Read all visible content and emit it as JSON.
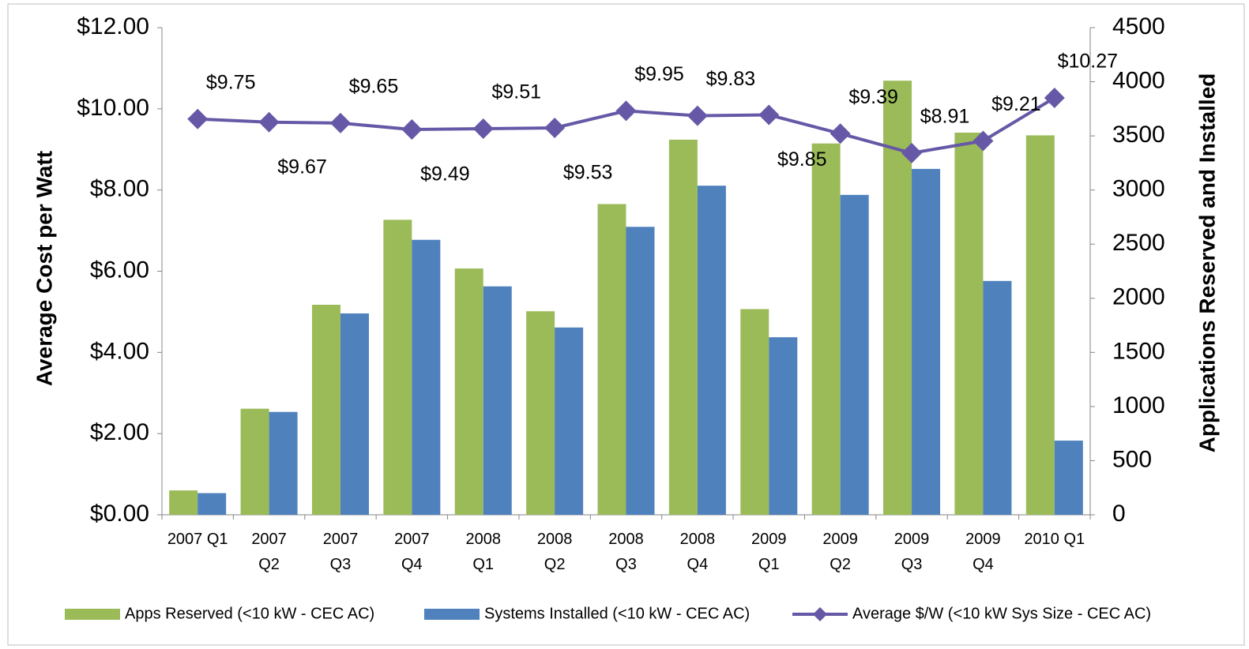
{
  "chart_data": {
    "type": "bar-line",
    "categories": [
      "2007 Q1",
      "2007\nQ2",
      "2007\nQ3",
      "2007\nQ4",
      "2008\nQ1",
      "2008\nQ2",
      "2008\nQ3",
      "2008\nQ4",
      "2009\nQ1",
      "2009\nQ2",
      "2009\nQ3",
      "2009\nQ4",
      "2010 Q1"
    ],
    "ylabel": "Average Cost per Watt",
    "y2label": "Applications Reserved and Installed",
    "ylim": [
      0,
      12
    ],
    "yticks": [
      {
        "value": 0,
        "label": "$0.00"
      },
      {
        "value": 2,
        "label": "$2.00"
      },
      {
        "value": 4,
        "label": "$4.00"
      },
      {
        "value": 6,
        "label": "$6.00"
      },
      {
        "value": 8,
        "label": "$8.00"
      },
      {
        "value": 10,
        "label": "$10.00"
      },
      {
        "value": 12,
        "label": "$12.00"
      }
    ],
    "y2lim": [
      0,
      4500
    ],
    "y2ticks": [
      0,
      500,
      1000,
      1500,
      2000,
      2500,
      3000,
      3500,
      4000,
      4500
    ],
    "legend": "bottom",
    "series": [
      {
        "name": "Apps Reserved (<10 kW - CEC AC)",
        "color": "#9bbb59",
        "type": "bar",
        "axis": "y2",
        "values": [
          225,
          980,
          1940,
          2725,
          2275,
          1880,
          2870,
          3465,
          1900,
          3430,
          4010,
          3530,
          3505
        ]
      },
      {
        "name": "Systems Installed (<10 kW - CEC AC)",
        "color": "#4f81bd",
        "type": "bar",
        "axis": "y2",
        "values": [
          200,
          950,
          1860,
          2540,
          2110,
          1730,
          2660,
          3040,
          1640,
          2955,
          3195,
          2160,
          685
        ]
      },
      {
        "name": "Average $/W (<10 kW Sys Size - CEC AC)",
        "color": "#6658a6",
        "type": "line",
        "values": [
          9.75,
          9.67,
          9.65,
          9.49,
          9.51,
          9.53,
          9.95,
          9.83,
          9.85,
          9.39,
          8.91,
          9.21,
          10.27
        ],
        "value_labels": [
          "$9.75",
          "$9.67",
          "$9.65",
          "$9.49",
          "$9.51",
          "$9.53",
          "$9.95",
          "$9.83",
          "$9.85",
          "$9.39",
          "$8.91",
          "$9.21",
          "$10.27"
        ]
      }
    ]
  }
}
